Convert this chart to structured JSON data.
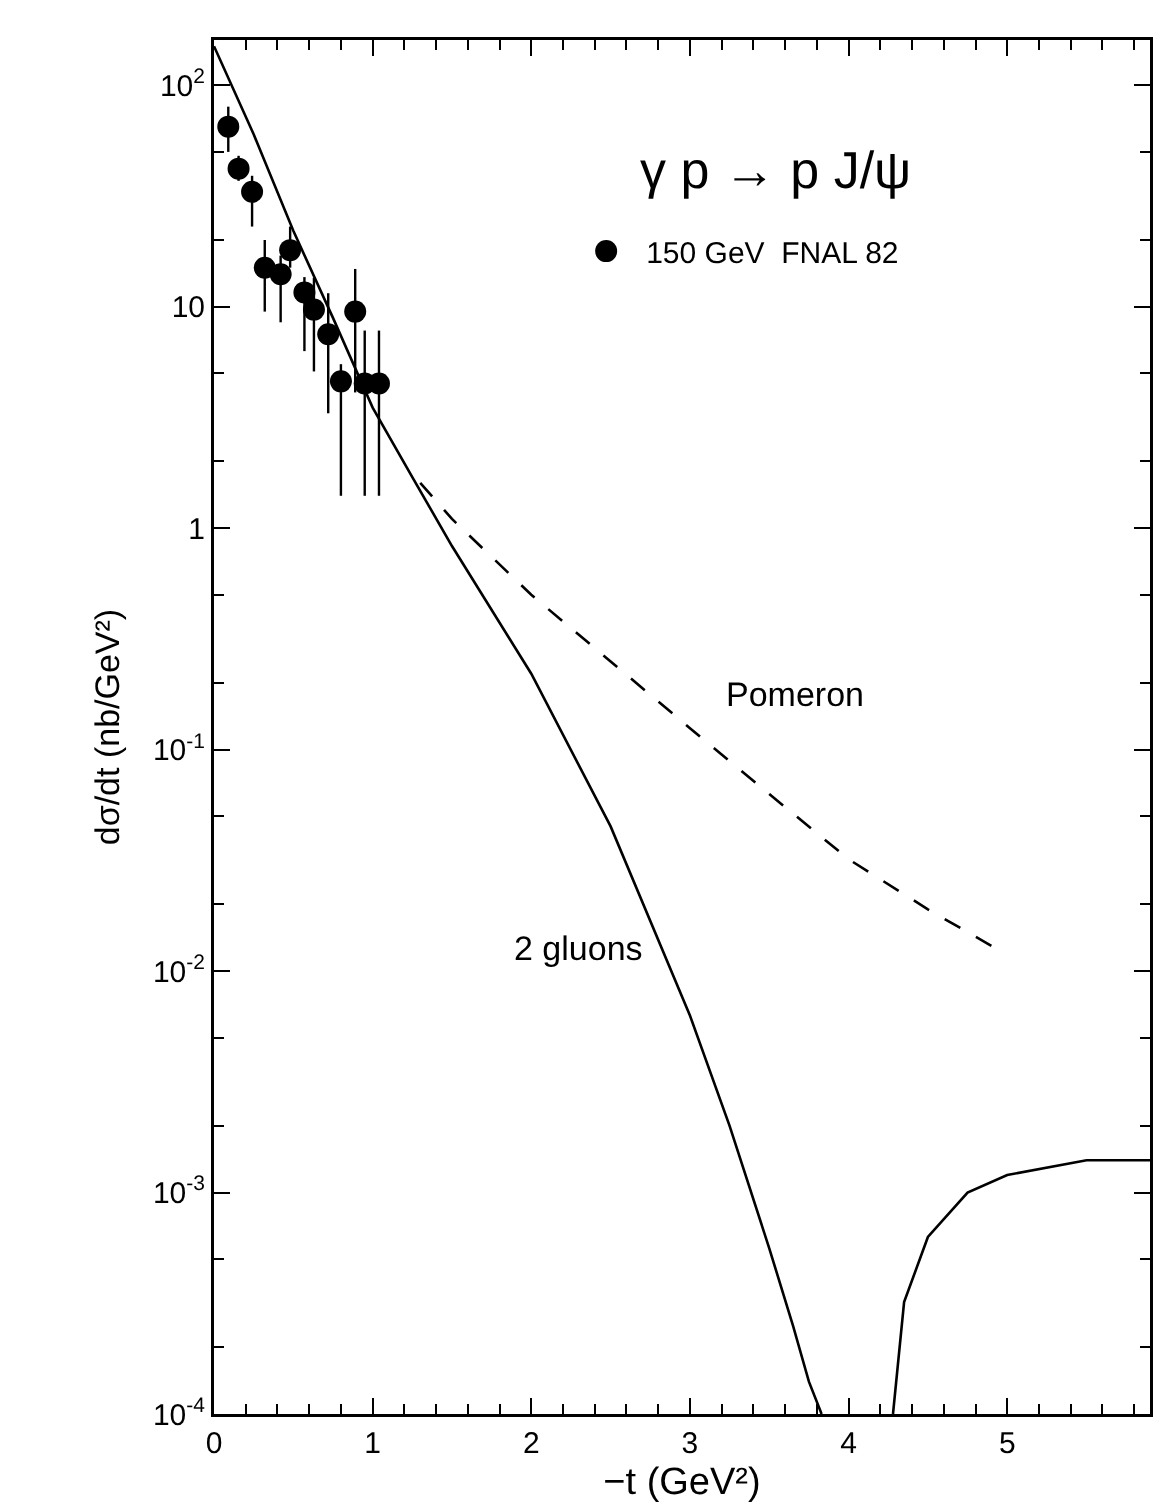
{
  "chart_data": {
    "type": "scatter",
    "xlabel": "−t (GeV²)",
    "ylabel": "dσ/dt (nb/GeV²)",
    "log": "y",
    "grid": false,
    "legend": "top",
    "xlim": [
      0,
      5.9
    ],
    "xticks": [
      0,
      1,
      2,
      3,
      4,
      5
    ],
    "ylim": [
      0.0001,
      160
    ],
    "yticks": [
      {
        "value": 0.0001,
        "label": "10$^{-4}$"
      },
      {
        "value": 0.001,
        "label": "10$^{-3}$"
      },
      {
        "value": 0.01,
        "label": "10$^{-2}$"
      },
      {
        "value": 0.1,
        "label": "10$^{-1}$"
      },
      1,
      10,
      {
        "value": 100,
        "label": "10$^{2}$"
      }
    ],
    "annotations": [
      "γ p → p J/ψ"
    ],
    "series": [
      {
        "name": "150 GeV  FNAL 82",
        "marker": "circle",
        "color": "#000000",
        "x": [
          0.09,
          0.155,
          0.24,
          0.32,
          0.42,
          0.48,
          0.57,
          0.63,
          0.72,
          0.8,
          0.89,
          0.95,
          1.04
        ],
        "values": [
          65,
          42,
          33,
          15,
          14,
          18,
          11.6,
          9.7,
          7.5,
          4.6,
          9.5,
          4.5,
          4.5
        ],
        "errors": [
          [
            50,
            80
          ],
          [
            37,
            48
          ],
          [
            23,
            39
          ],
          [
            9.5,
            20
          ],
          [
            8.5,
            17
          ],
          [
            15,
            23
          ],
          [
            6.3,
            13.6
          ],
          [
            5.1,
            13.5
          ],
          [
            3.3,
            11.5
          ],
          [
            1.4,
            5.5
          ],
          [
            4.1,
            14.8
          ],
          [
            1.4,
            7.8
          ],
          [
            1.4,
            7.8
          ]
        ]
      },
      {
        "name": "2 gluons",
        "type": "line",
        "line_style": "solid",
        "color": "#000000",
        "x": [
          0,
          0.25,
          0.5,
          0.75,
          1,
          1.25,
          1.5,
          2,
          2.5,
          3,
          3.25,
          3.5,
          3.65,
          3.75,
          3.83,
          4.05,
          4.28,
          4.35,
          4.5,
          4.75,
          5,
          5.5,
          5.9
        ],
        "values": [
          150,
          60,
          22,
          8.9,
          3.5,
          1.7,
          0.83,
          0.22,
          0.045,
          0.0063,
          0.002,
          0.00056,
          0.00025,
          0.00014,
          0.0001,
          null,
          0.0001,
          0.00032,
          0.00063,
          0.001,
          0.0012,
          0.0014,
          0.0014
        ]
      },
      {
        "name": "Pomeron",
        "type": "line",
        "line_style": "dashed",
        "color": "#000000",
        "x": [
          1.3,
          1.5,
          2,
          2.5,
          3,
          3.5,
          4,
          4.5,
          4.9
        ],
        "values": [
          1.6,
          1.1,
          0.5,
          0.25,
          0.125,
          0.063,
          0.032,
          0.019,
          0.013
        ]
      }
    ]
  }
}
